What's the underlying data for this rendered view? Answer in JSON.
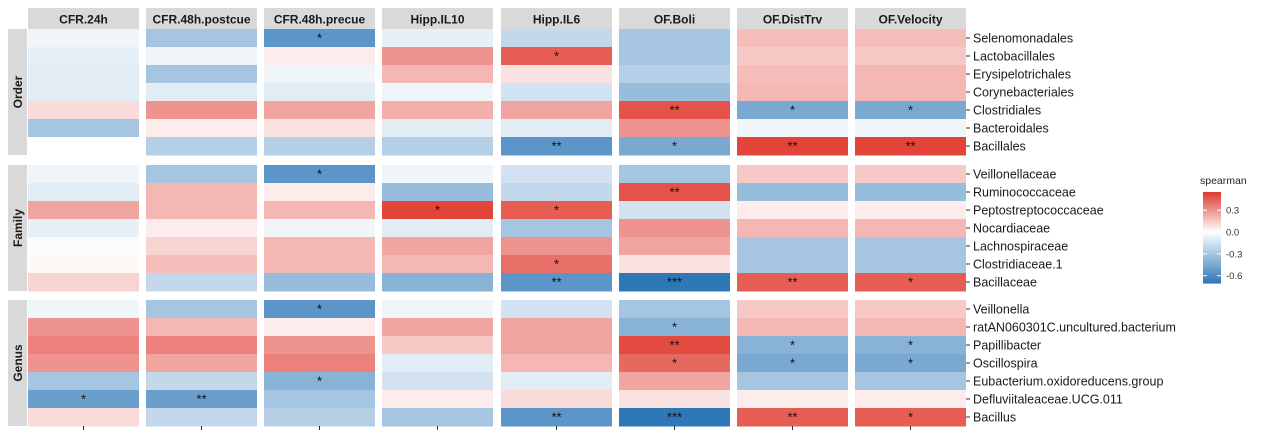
{
  "chart_data": {
    "type": "heatmap",
    "columns": [
      "CFR.24h",
      "CFR.48h.postcue",
      "CFR.48h.precue",
      "Hipp.IL10",
      "Hipp.IL6",
      "OF.Boli",
      "OF.DistTrv",
      "OF.Velocity"
    ],
    "groups": [
      {
        "name": "Order",
        "rows": [
          "Selenomonadales",
          "Lactobacillales",
          "Erysipelotrichales",
          "Corynebacteriales",
          "Clostridiales",
          "Bacteroidales",
          "Bacillales"
        ],
        "values": [
          [
            -0.05,
            -0.3,
            -0.55,
            -0.08,
            -0.2,
            -0.3,
            0.18,
            0.18
          ],
          [
            -0.08,
            -0.05,
            0.05,
            0.3,
            0.45,
            -0.3,
            0.15,
            0.15
          ],
          [
            -0.1,
            -0.3,
            -0.05,
            0.2,
            0.08,
            -0.25,
            0.18,
            0.2
          ],
          [
            -0.1,
            -0.1,
            -0.1,
            -0.05,
            -0.15,
            -0.35,
            0.2,
            0.2
          ],
          [
            0.1,
            0.3,
            0.25,
            0.22,
            0.25,
            0.48,
            -0.45,
            -0.45
          ],
          [
            -0.3,
            0.05,
            0.08,
            -0.1,
            -0.1,
            0.3,
            -0.05,
            -0.05
          ],
          [
            0.0,
            -0.25,
            -0.25,
            -0.25,
            -0.55,
            -0.45,
            0.52,
            0.52
          ]
        ],
        "stars": [
          [
            "",
            "",
            "*",
            "",
            "",
            "",
            "",
            ""
          ],
          [
            "",
            "",
            "",
            "",
            "*",
            "",
            "",
            ""
          ],
          [
            "",
            "",
            "",
            "",
            "",
            "",
            "",
            ""
          ],
          [
            "",
            "",
            "",
            "",
            "",
            "",
            "",
            ""
          ],
          [
            "",
            "",
            "",
            "",
            "",
            "**",
            "*",
            "*"
          ],
          [
            "",
            "",
            "",
            "",
            "",
            "",
            "",
            ""
          ],
          [
            "",
            "",
            "",
            "",
            "**",
            "*",
            "**",
            "**"
          ]
        ]
      },
      {
        "name": "Family",
        "rows": [
          "Veillonellaceae",
          "Ruminococcaceae",
          "Peptostreptococcaceae",
          "Nocardiaceae",
          "Lachnospiraceae",
          "Clostridiaceae.1",
          "Bacillaceae"
        ],
        "values": [
          [
            -0.05,
            -0.3,
            -0.55,
            -0.05,
            -0.15,
            -0.3,
            0.15,
            0.15
          ],
          [
            -0.1,
            0.2,
            0.05,
            -0.35,
            -0.2,
            0.48,
            -0.35,
            -0.35
          ],
          [
            0.25,
            0.2,
            0.2,
            0.52,
            0.45,
            -0.15,
            0.05,
            0.05
          ],
          [
            -0.08,
            0.05,
            -0.05,
            -0.1,
            -0.3,
            0.3,
            0.2,
            0.2
          ],
          [
            -0.02,
            0.12,
            0.2,
            0.25,
            0.3,
            0.25,
            -0.3,
            -0.3
          ],
          [
            0.02,
            0.18,
            0.2,
            0.2,
            0.4,
            0.08,
            -0.3,
            -0.3
          ],
          [
            0.12,
            -0.2,
            -0.35,
            -0.4,
            -0.55,
            -0.7,
            0.45,
            0.45
          ]
        ],
        "stars": [
          [
            "",
            "",
            "*",
            "",
            "",
            "",
            "",
            ""
          ],
          [
            "",
            "",
            "",
            "",
            "",
            "**",
            "",
            ""
          ],
          [
            "",
            "",
            "",
            "*",
            "*",
            "",
            "",
            ""
          ],
          [
            "",
            "",
            "",
            "",
            "",
            "",
            "",
            ""
          ],
          [
            "",
            "",
            "",
            "",
            "",
            "",
            "",
            ""
          ],
          [
            "",
            "",
            "",
            "",
            "*",
            "",
            "",
            ""
          ],
          [
            "",
            "",
            "",
            "",
            "**",
            "***",
            "**",
            "*"
          ]
        ]
      },
      {
        "name": "Genus",
        "rows": [
          "Veillonella",
          "ratAN060301C.uncultured.bacterium",
          "Papillibacter",
          "Oscillospira",
          "Eubacterium.oxidoreducens.group",
          "Defluviitaleaceae.UCG.011",
          "Bacillus"
        ],
        "values": [
          [
            -0.05,
            -0.3,
            -0.55,
            -0.05,
            -0.15,
            -0.3,
            0.15,
            0.15
          ],
          [
            0.3,
            0.2,
            0.05,
            0.25,
            0.25,
            -0.4,
            0.2,
            0.2
          ],
          [
            0.35,
            0.35,
            0.3,
            0.15,
            0.25,
            0.5,
            -0.4,
            -0.4
          ],
          [
            0.3,
            0.25,
            0.35,
            -0.1,
            0.2,
            0.42,
            -0.45,
            -0.45
          ],
          [
            -0.3,
            -0.2,
            -0.4,
            -0.15,
            -0.1,
            0.25,
            -0.3,
            -0.3
          ],
          [
            -0.5,
            -0.5,
            -0.3,
            0.05,
            0.1,
            0.08,
            0.05,
            0.05
          ],
          [
            0.1,
            -0.2,
            -0.25,
            -0.3,
            -0.55,
            -0.7,
            0.45,
            0.45
          ]
        ],
        "stars": [
          [
            "",
            "",
            "*",
            "",
            "",
            "",
            "",
            ""
          ],
          [
            "",
            "",
            "",
            "",
            "",
            "*",
            "",
            ""
          ],
          [
            "",
            "",
            "",
            "",
            "",
            "**",
            "*",
            "*"
          ],
          [
            "",
            "",
            "",
            "",
            "",
            "*",
            "*",
            "*"
          ],
          [
            "",
            "",
            "*",
            "",
            "",
            "",
            "",
            ""
          ],
          [
            "*",
            "**",
            "",
            "",
            "",
            "",
            "",
            ""
          ],
          [
            "",
            "",
            "",
            "",
            "**",
            "***",
            "**",
            "*"
          ]
        ]
      }
    ],
    "legend": {
      "title": "spearman",
      "ticks": [
        0.3,
        0.0,
        -0.3,
        -0.6
      ],
      "tick_labels": [
        "0.3",
        "0.0",
        "-0.3",
        "-0.6"
      ],
      "range": [
        -0.7,
        0.55
      ],
      "low_color": "#2f78b8",
      "mid_color": "#ffffff",
      "high_color": "#e0392e"
    },
    "xlabel": "",
    "ylabel": ""
  }
}
